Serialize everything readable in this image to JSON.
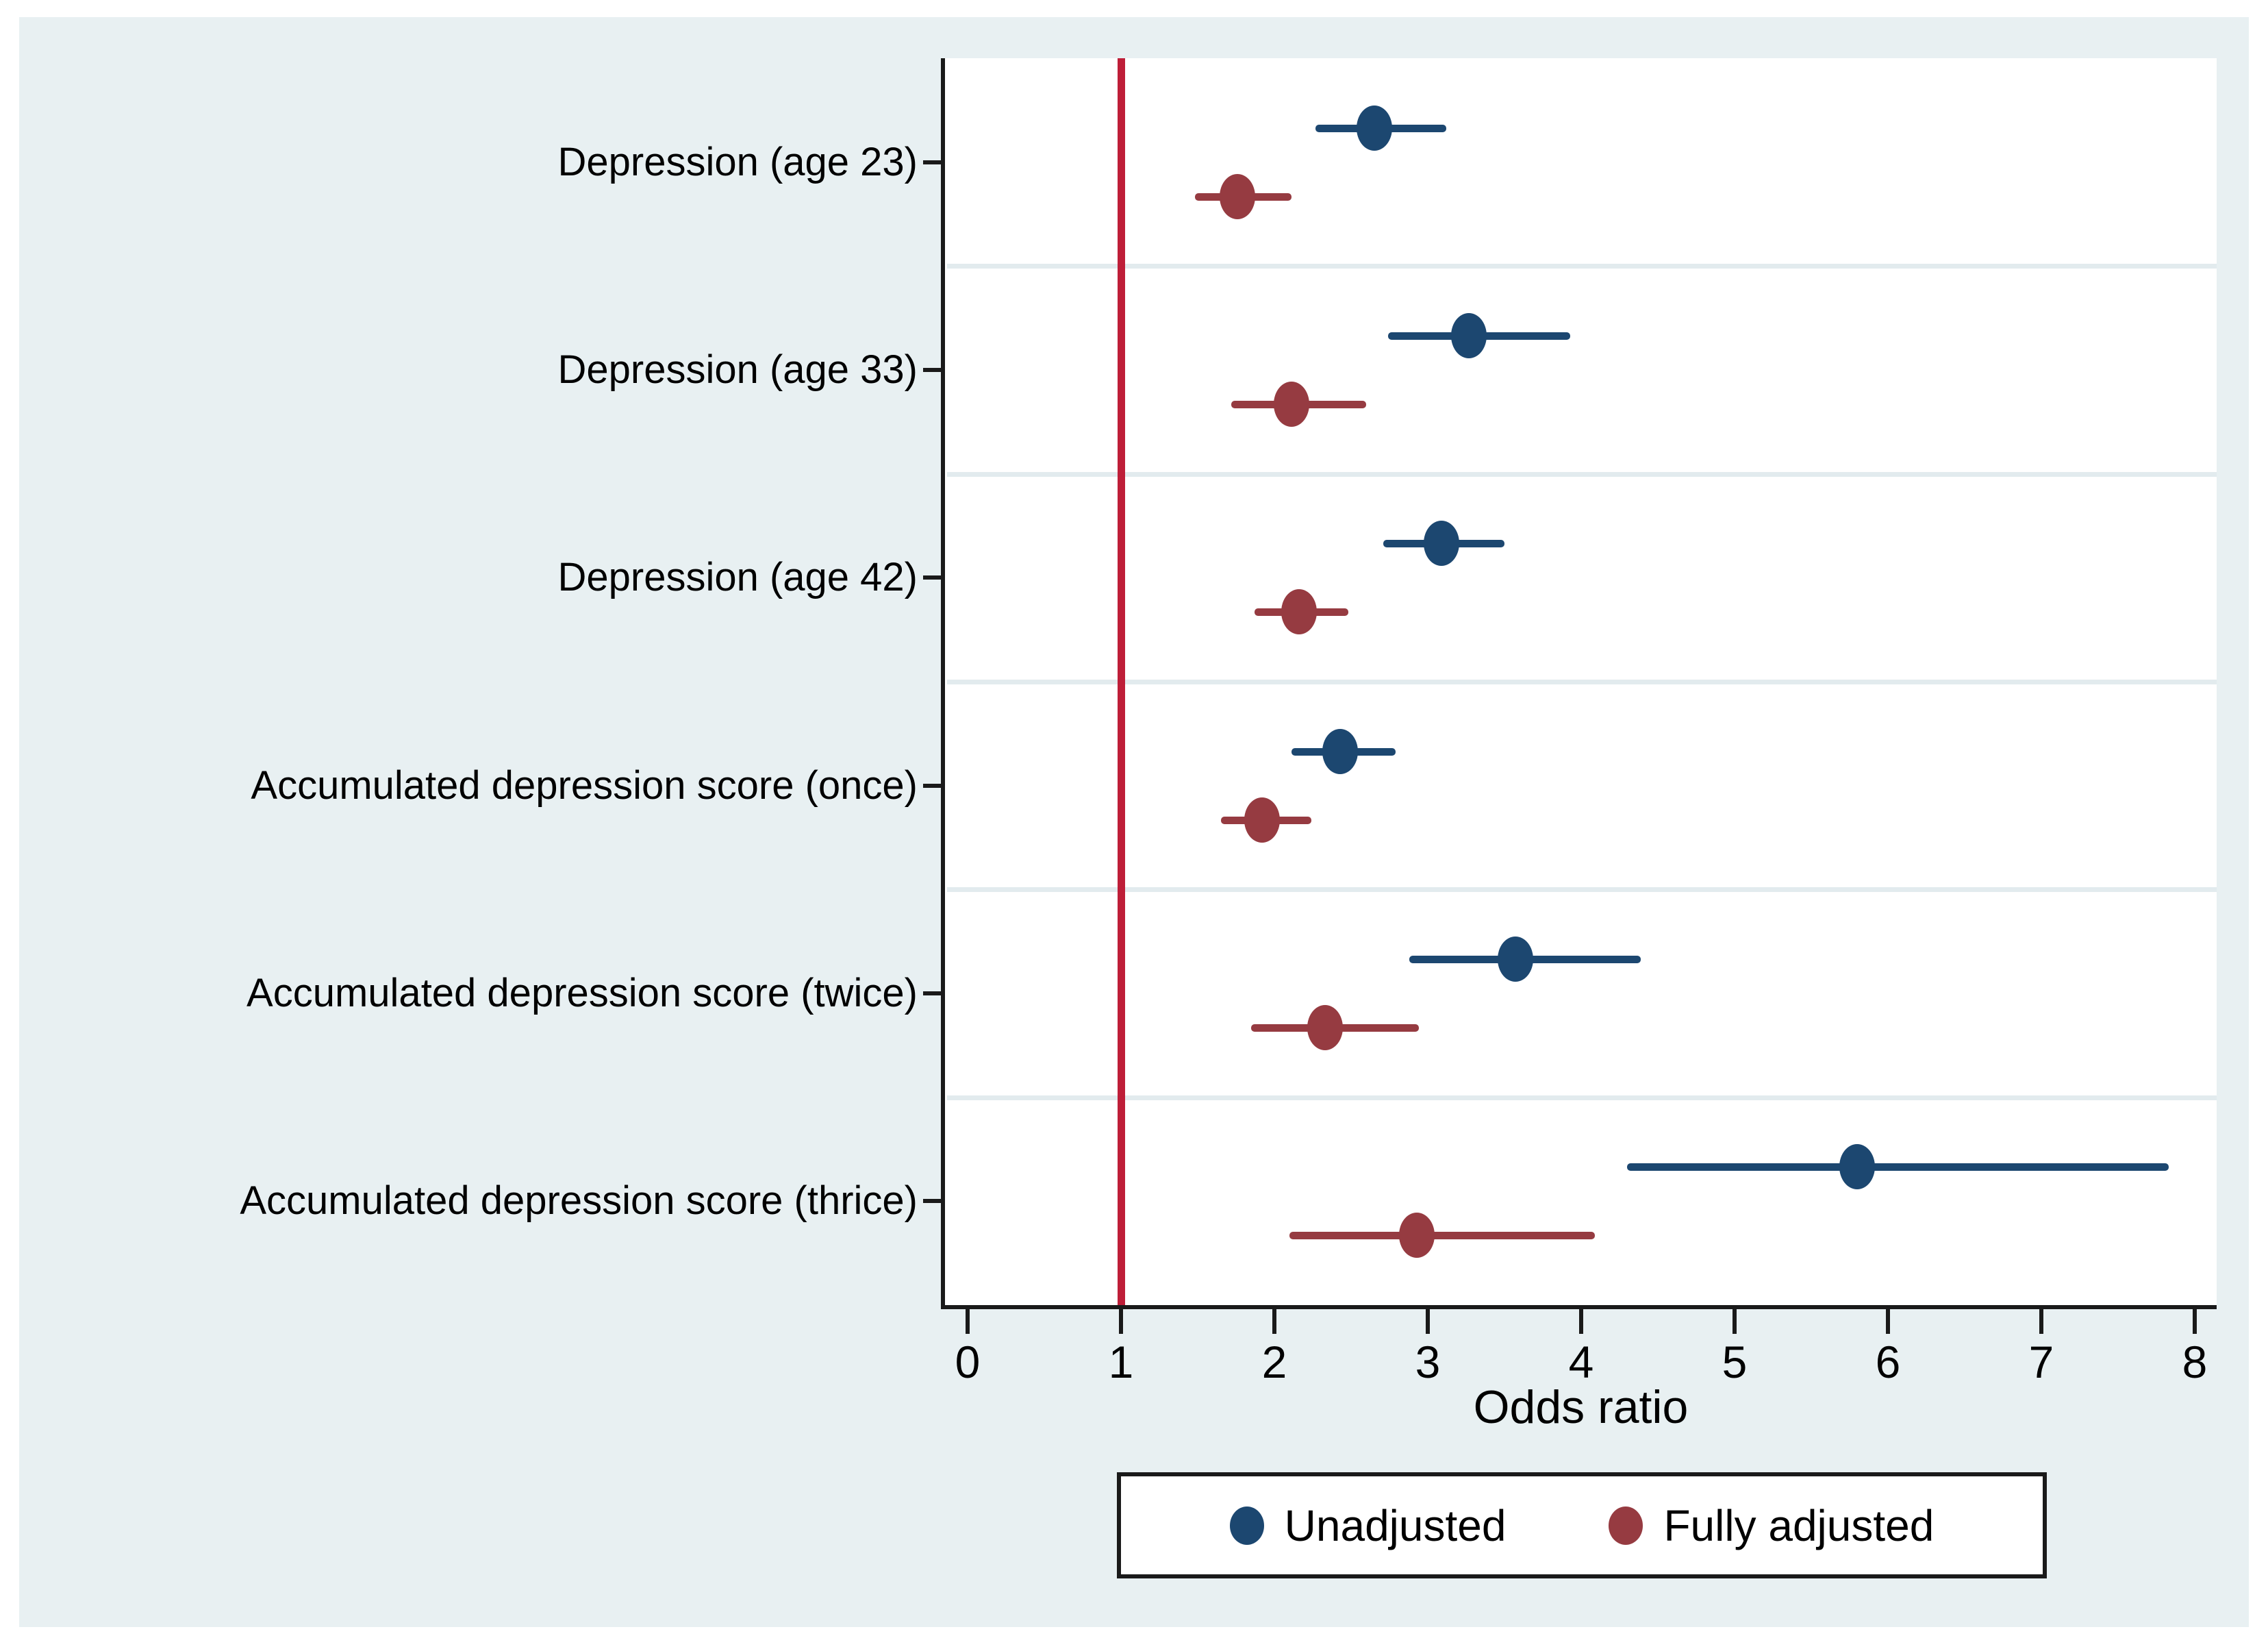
{
  "figure": {
    "background": "#E8F0F2",
    "plot_background": "#FFFFFF",
    "axis_color": "#1a1a1a",
    "separator_color": "#E2EBEE"
  },
  "chart_data": {
    "type": "scatter",
    "subtype": "forest-plot-odds-ratios",
    "title": "",
    "xlabel": "Odds ratio",
    "ylabel": "",
    "xlim": [
      -0.15,
      8.15
    ],
    "x_ticks": [
      "0",
      "1",
      "2",
      "3",
      "4",
      "5",
      "6",
      "7",
      "8"
    ],
    "reference_line_x": 1,
    "reference_line_color": "#BE1E38",
    "grid": "horizontal separators between categories",
    "legend_position": "bottom",
    "categories": [
      "Depression (age 23)",
      "Depression (age 33)",
      "Depression (age 42)",
      "Accumulated depression score (once)",
      "Accumulated depression score (twice)",
      "Accumulated depression score (thrice)"
    ],
    "series": [
      {
        "name": "Unadjusted",
        "color": "#1C4770",
        "points": [
          {
            "or": 2.65,
            "ci_low": 2.27,
            "ci_high": 3.12
          },
          {
            "or": 3.27,
            "ci_low": 2.74,
            "ci_high": 3.93
          },
          {
            "or": 3.09,
            "ci_low": 2.71,
            "ci_high": 3.5
          },
          {
            "or": 2.43,
            "ci_low": 2.11,
            "ci_high": 2.79
          },
          {
            "or": 3.57,
            "ci_low": 2.88,
            "ci_high": 4.39
          },
          {
            "or": 5.8,
            "ci_low": 4.3,
            "ci_high": 7.83
          }
        ]
      },
      {
        "name": "Fully adjusted",
        "color": "#963B41",
        "points": [
          {
            "or": 1.76,
            "ci_low": 1.48,
            "ci_high": 2.11
          },
          {
            "or": 2.11,
            "ci_low": 1.72,
            "ci_high": 2.6
          },
          {
            "or": 2.16,
            "ci_low": 1.87,
            "ci_high": 2.48
          },
          {
            "or": 1.92,
            "ci_low": 1.65,
            "ci_high": 2.24
          },
          {
            "or": 2.33,
            "ci_low": 1.85,
            "ci_high": 2.94
          },
          {
            "or": 2.93,
            "ci_low": 2.1,
            "ci_high": 4.09
          }
        ]
      }
    ]
  }
}
